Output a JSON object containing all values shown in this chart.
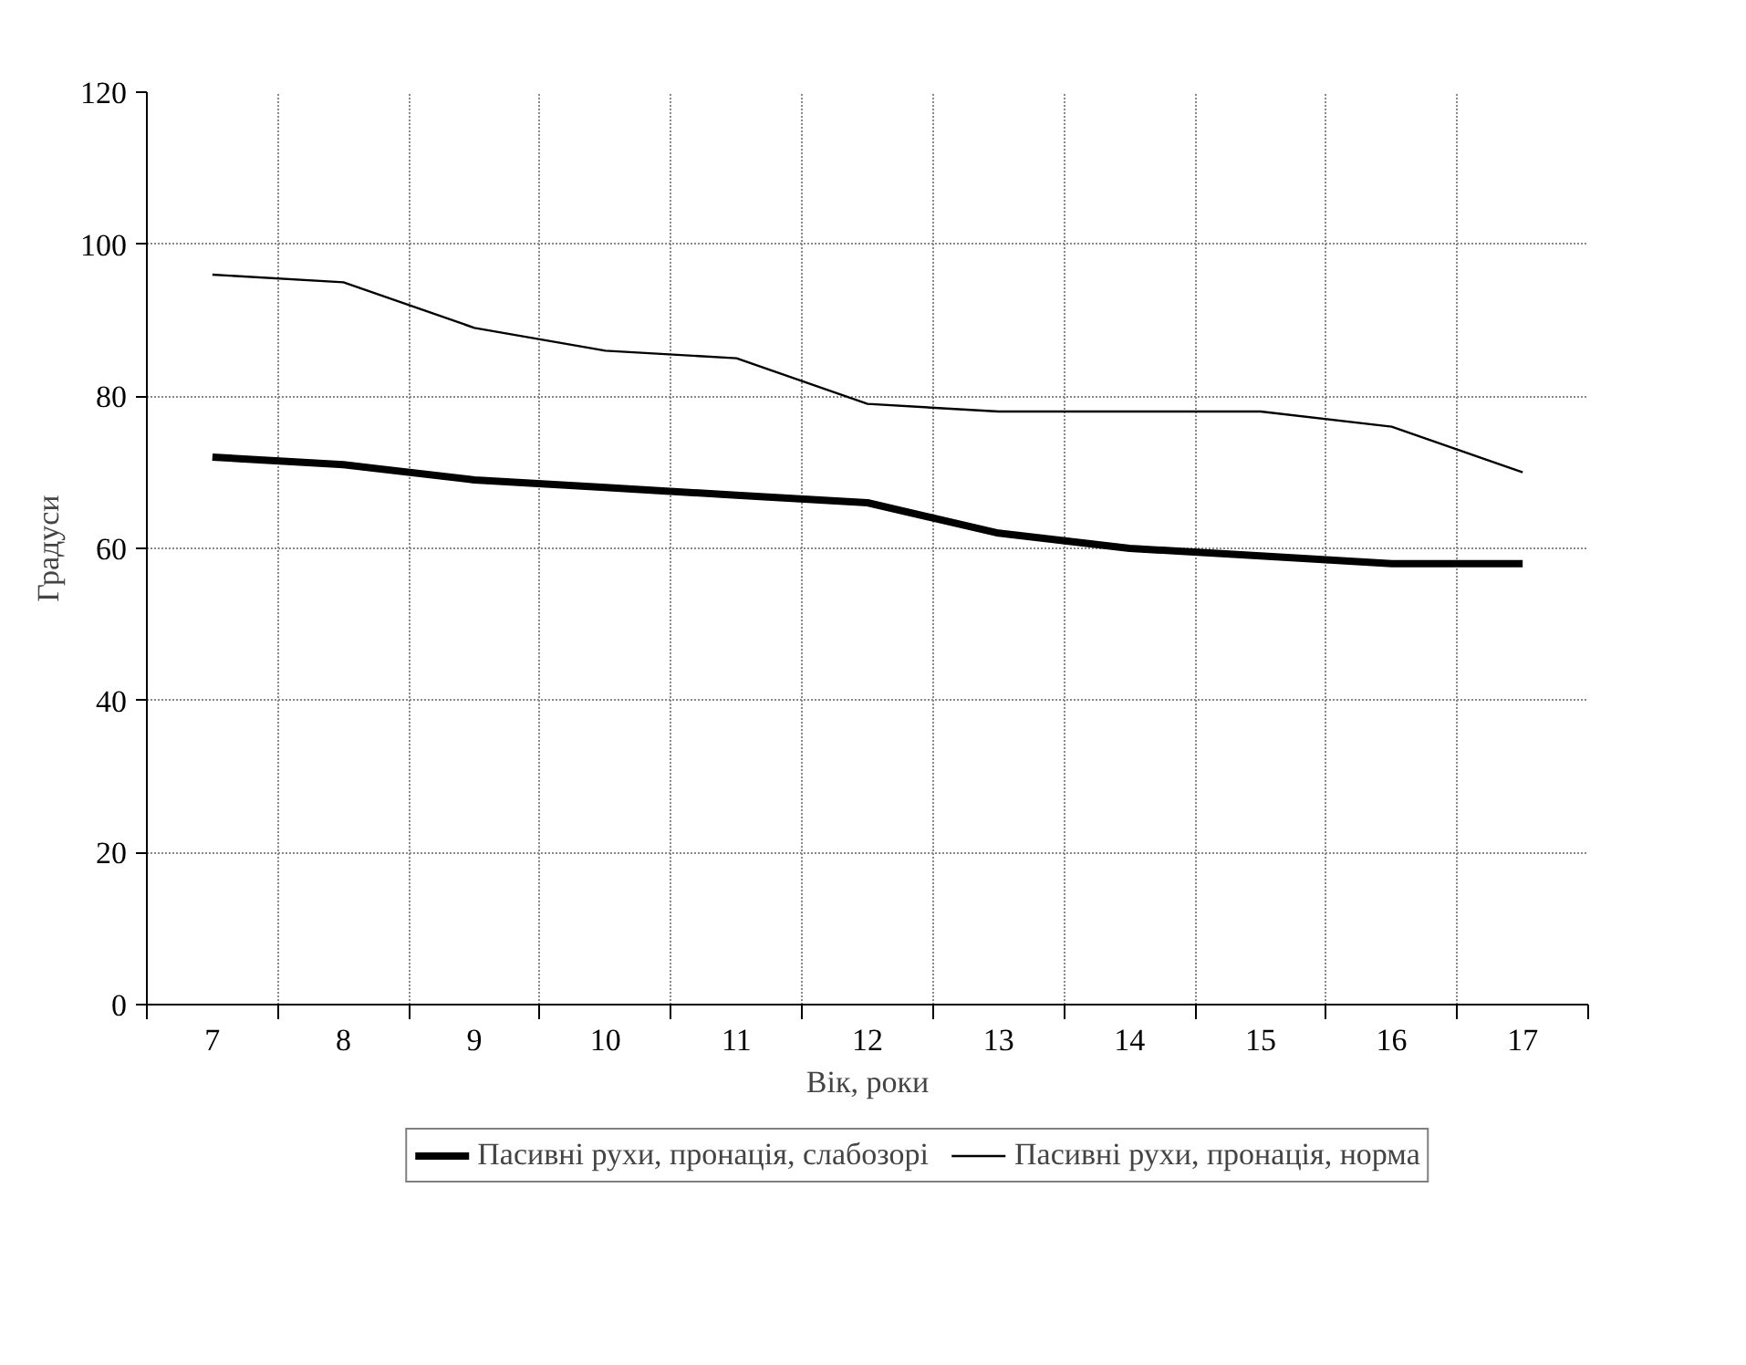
{
  "chart_data": {
    "type": "line",
    "xlabel": "Вік, роки",
    "ylabel": "Градуси",
    "categories": [
      "7",
      "8",
      "9",
      "10",
      "11",
      "12",
      "13",
      "14",
      "15",
      "16",
      "17"
    ],
    "series": [
      {
        "name": "Пасивні рухи, пронація, слабозорі",
        "color": "#000000",
        "values": [
          72,
          71,
          69,
          68,
          67,
          66,
          62,
          60,
          59,
          58,
          58
        ]
      },
      {
        "name": "Пасивні рухи, пронація, норма",
        "color": "#000000",
        "values": [
          96,
          95,
          89,
          86,
          85,
          79,
          78,
          78,
          78,
          76,
          70
        ]
      }
    ],
    "ylim": [
      0,
      120
    ],
    "yticks": [
      0,
      20,
      40,
      60,
      80,
      100,
      120
    ],
    "grid": true,
    "legend": "bottom",
    "marker": "none",
    "line_style": "solid"
  }
}
